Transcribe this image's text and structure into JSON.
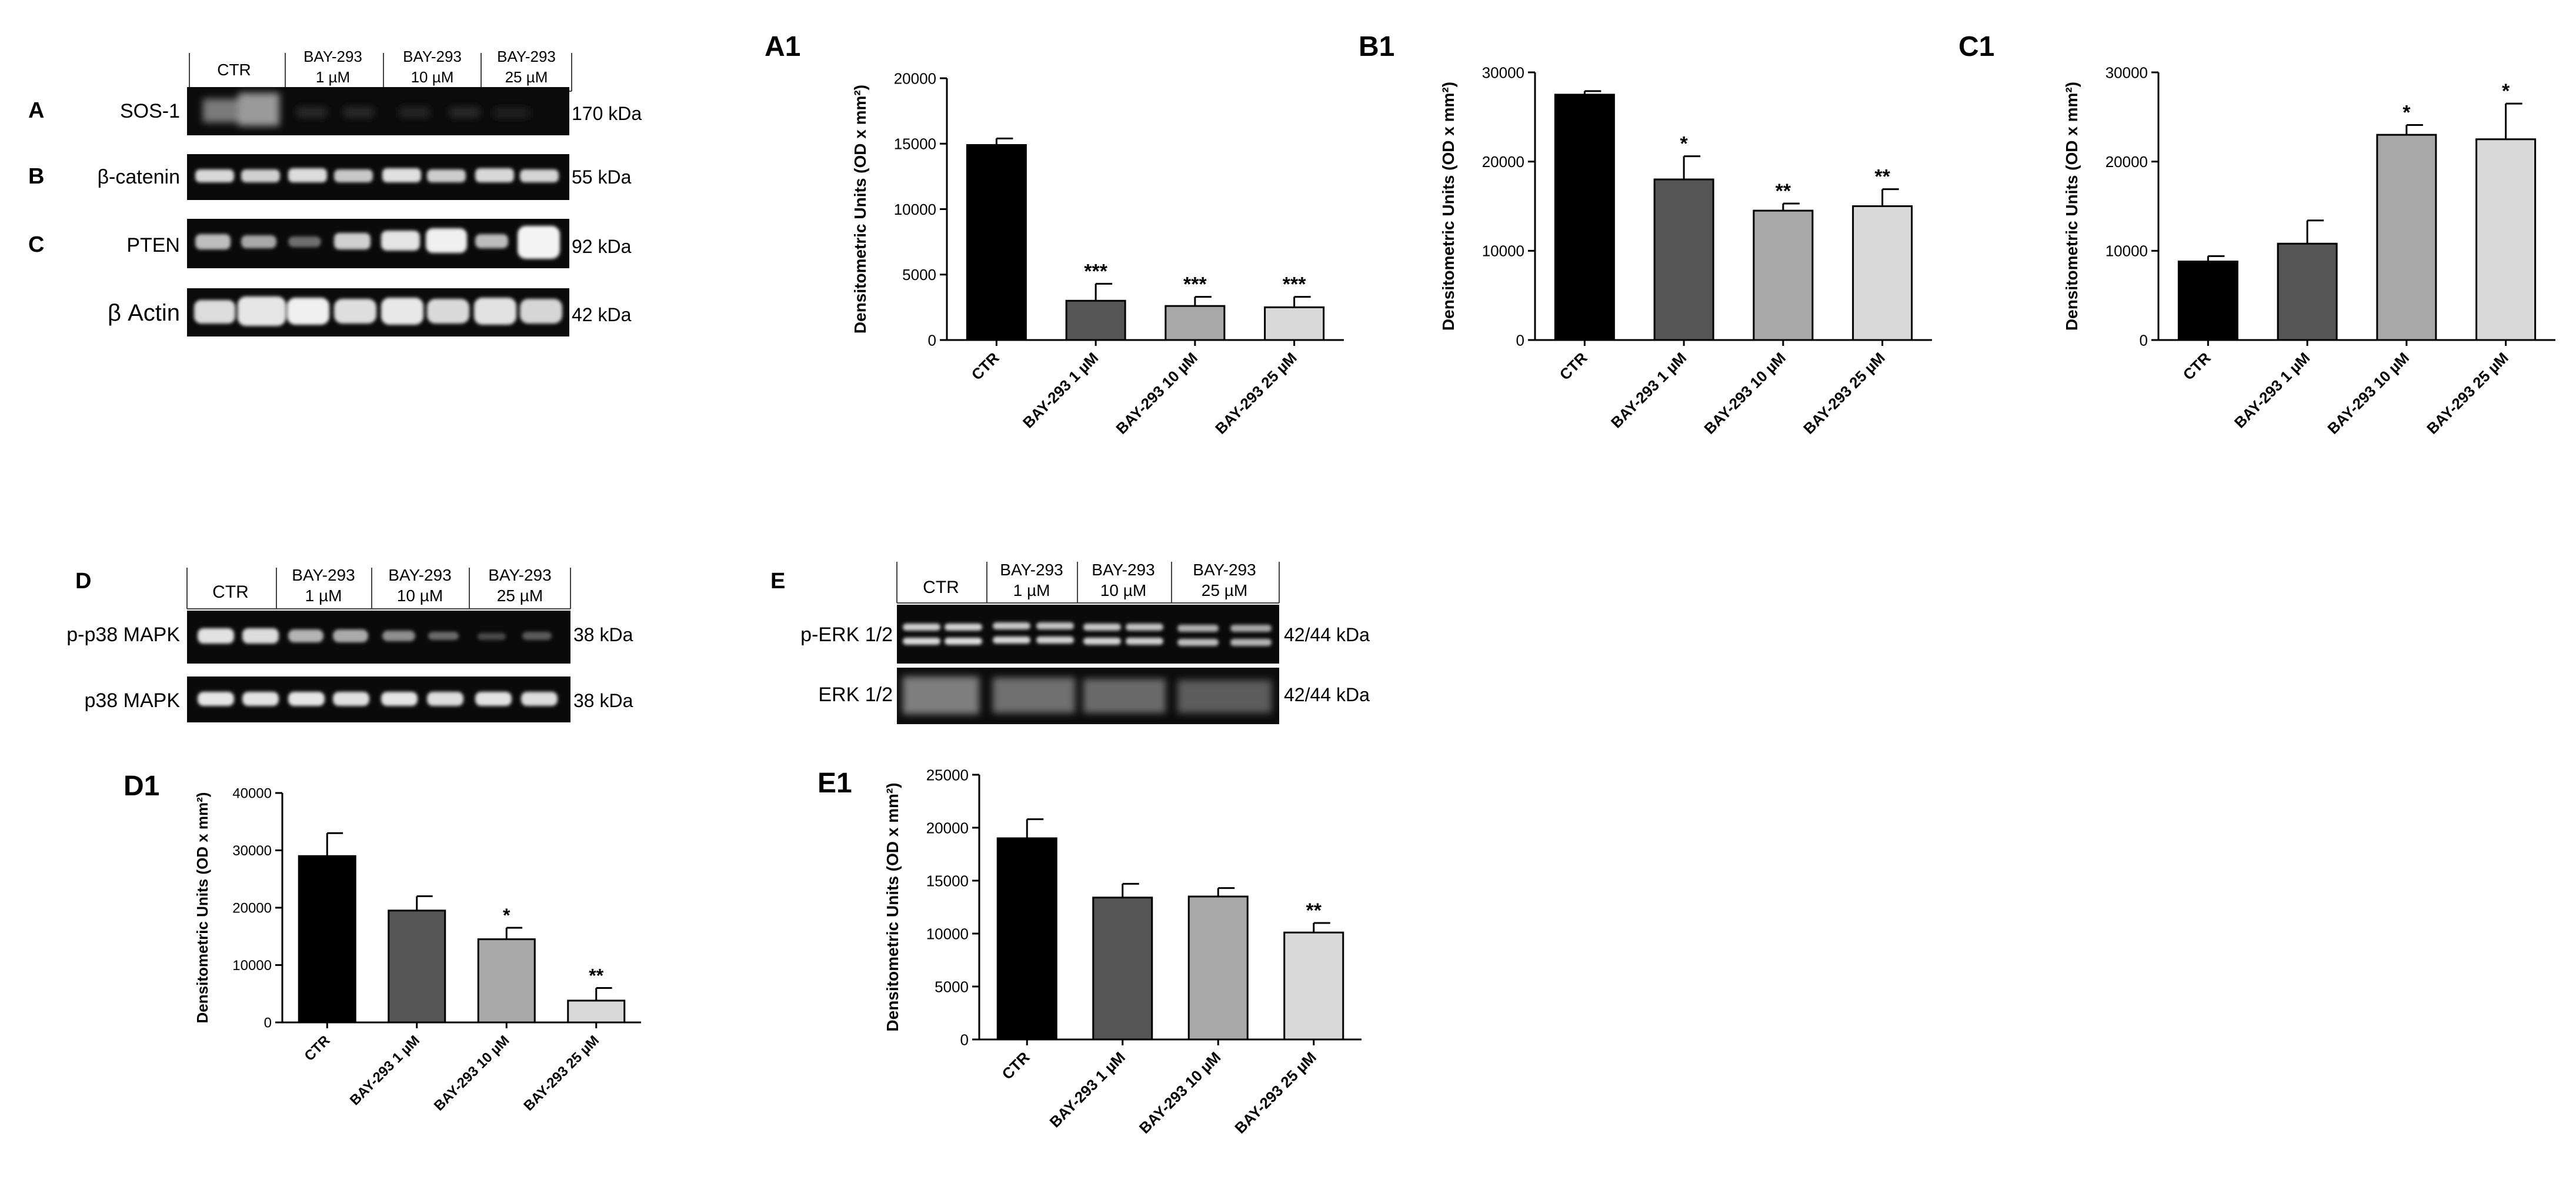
{
  "blots": {
    "top": {
      "header_labels": [
        "CTR",
        "BAY-293",
        "1 µM",
        "BAY-293",
        "10 µM",
        "BAY-293",
        "25 µM"
      ],
      "rows": [
        {
          "letter": "A",
          "label": "SOS-1",
          "kda": "170 kDa"
        },
        {
          "letter": "B",
          "label": "β-catenin",
          "kda": "55 kDa"
        },
        {
          "letter": "C",
          "label": "PTEN",
          "kda": "92 kDa"
        },
        {
          "letter": "",
          "label": "β Actin",
          "kda": "42 kDa"
        }
      ]
    },
    "D": {
      "letter": "D",
      "header_labels": [
        "CTR",
        "BAY-293",
        "1 µM",
        "BAY-293",
        "10 µM",
        "BAY-293",
        "25 µM"
      ],
      "rows": [
        {
          "label": "p-p38 MAPK",
          "kda": "38 kDa"
        },
        {
          "label": "p38 MAPK",
          "kda": "38 kDa"
        }
      ]
    },
    "E": {
      "letter": "E",
      "header_labels": [
        "CTR",
        "BAY-293",
        "1 µM",
        "BAY-293",
        "10 µM",
        "BAY-293",
        "25 µM"
      ],
      "rows": [
        {
          "label": "p-ERK 1/2",
          "kda": "42/44 kDa"
        },
        {
          "label": "ERK 1/2",
          "kda": "42/44 kDa"
        }
      ]
    }
  },
  "chart_data": [
    {
      "panel": "A1",
      "type": "bar",
      "ylabel": "Densitometric Units (OD x mm²)",
      "categories": [
        "CTR",
        "BAY-293 1 µM",
        "BAY-293 10 µM",
        "BAY-293 25 µM"
      ],
      "values": [
        14900,
        3000,
        2600,
        2500
      ],
      "errors": [
        500,
        1300,
        700,
        800
      ],
      "significance": [
        "",
        "***",
        "***",
        "***"
      ],
      "ylim": [
        0,
        20000
      ],
      "yticks": [
        0,
        5000,
        10000,
        15000,
        20000
      ],
      "colors": [
        "#000000",
        "#555555",
        "#a8a8a8",
        "#d9d9d9"
      ]
    },
    {
      "panel": "B1",
      "type": "bar",
      "ylabel": "Densitometric Units (OD x mm²)",
      "categories": [
        "CTR",
        "BAY-293 1 µM",
        "BAY-293 10 µM",
        "BAY-293 25 µM"
      ],
      "values": [
        27500,
        18000,
        14500,
        15000
      ],
      "errors": [
        400,
        2600,
        800,
        1900
      ],
      "significance": [
        "",
        "*",
        "**",
        "**"
      ],
      "ylim": [
        0,
        30000
      ],
      "yticks": [
        0,
        10000,
        20000,
        30000
      ],
      "colors": [
        "#000000",
        "#555555",
        "#a8a8a8",
        "#d9d9d9"
      ]
    },
    {
      "panel": "C1",
      "type": "bar",
      "ylabel": "Densitometric Units (OD x mm²)",
      "categories": [
        "CTR",
        "BAY-293 1 µM",
        "BAY-293 10 µM",
        "BAY-293 25 µM"
      ],
      "values": [
        8800,
        10800,
        23000,
        22500
      ],
      "errors": [
        600,
        2600,
        1100,
        4000
      ],
      "significance": [
        "",
        "",
        "*",
        "*"
      ],
      "ylim": [
        0,
        30000
      ],
      "yticks": [
        0,
        10000,
        20000,
        30000
      ],
      "colors": [
        "#000000",
        "#555555",
        "#a8a8a8",
        "#d9d9d9"
      ]
    },
    {
      "panel": "D1",
      "type": "bar",
      "ylabel": "Densitometric Units (OD x mm²)",
      "categories": [
        "CTR",
        "BAY-293 1 µM",
        "BAY-293 10 µM",
        "BAY-293 25 µM"
      ],
      "values": [
        29000,
        19500,
        14500,
        3800
      ],
      "errors": [
        4000,
        2500,
        2000,
        2200
      ],
      "significance": [
        "",
        "",
        "*",
        "**"
      ],
      "ylim": [
        0,
        40000
      ],
      "yticks": [
        0,
        10000,
        20000,
        30000,
        40000
      ],
      "colors": [
        "#000000",
        "#555555",
        "#a8a8a8",
        "#d9d9d9"
      ]
    },
    {
      "panel": "E1",
      "type": "bar",
      "ylabel": "Densitometric Units (OD x mm²)",
      "categories": [
        "CTR",
        "BAY-293 1 µM",
        "BAY-293 10 µM",
        "BAY-293 25 µM"
      ],
      "values": [
        19000,
        13400,
        13500,
        10100
      ],
      "errors": [
        1800,
        1300,
        800,
        900
      ],
      "significance": [
        "",
        "",
        "",
        "**"
      ],
      "ylim": [
        0,
        25000
      ],
      "yticks": [
        0,
        5000,
        10000,
        15000,
        20000,
        25000
      ],
      "colors": [
        "#000000",
        "#555555",
        "#a8a8a8",
        "#d9d9d9"
      ]
    }
  ]
}
